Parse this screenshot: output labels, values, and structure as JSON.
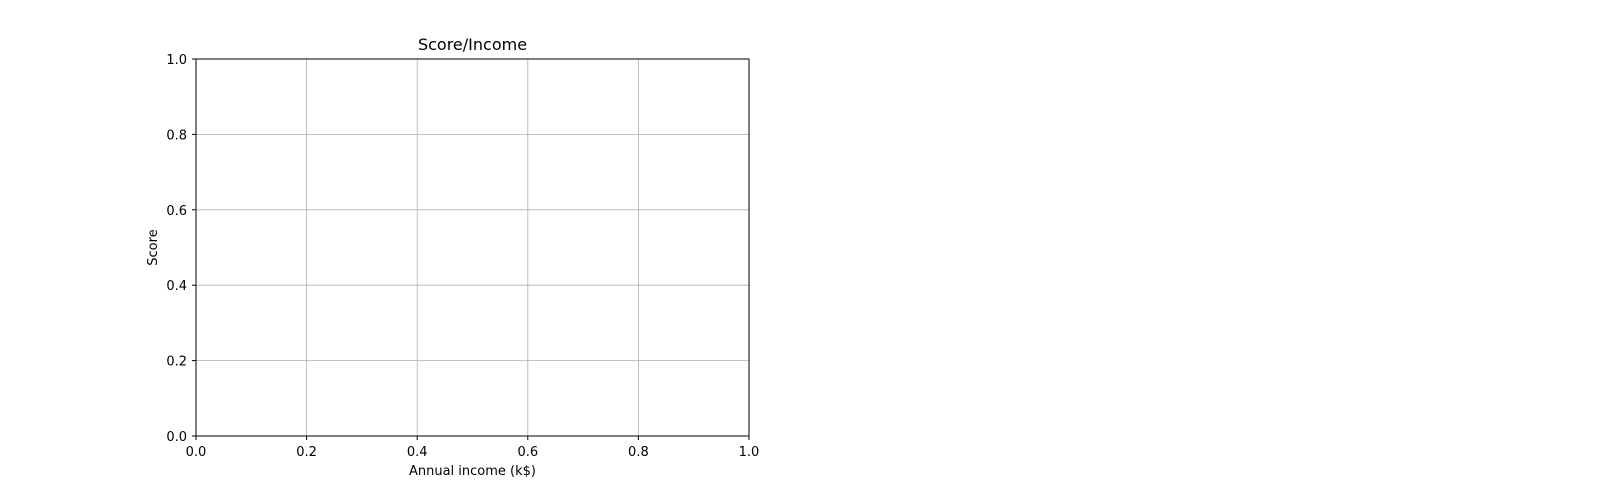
{
  "chart_data": {
    "type": "scatter",
    "title": "Score/Income",
    "xlabel": "Annual income (k$)",
    "ylabel": "Score",
    "xlim": [
      0.0,
      1.0
    ],
    "ylim": [
      0.0,
      1.0
    ],
    "x_ticks": [
      "0.0",
      "0.2",
      "0.4",
      "0.6",
      "0.8",
      "1.0"
    ],
    "y_ticks": [
      "0.0",
      "0.2",
      "0.4",
      "0.6",
      "0.8",
      "1.0"
    ],
    "grid": true,
    "series": []
  },
  "colors": {
    "grid": "#b0b0b0",
    "axes": "#000000",
    "background": "#ffffff"
  }
}
